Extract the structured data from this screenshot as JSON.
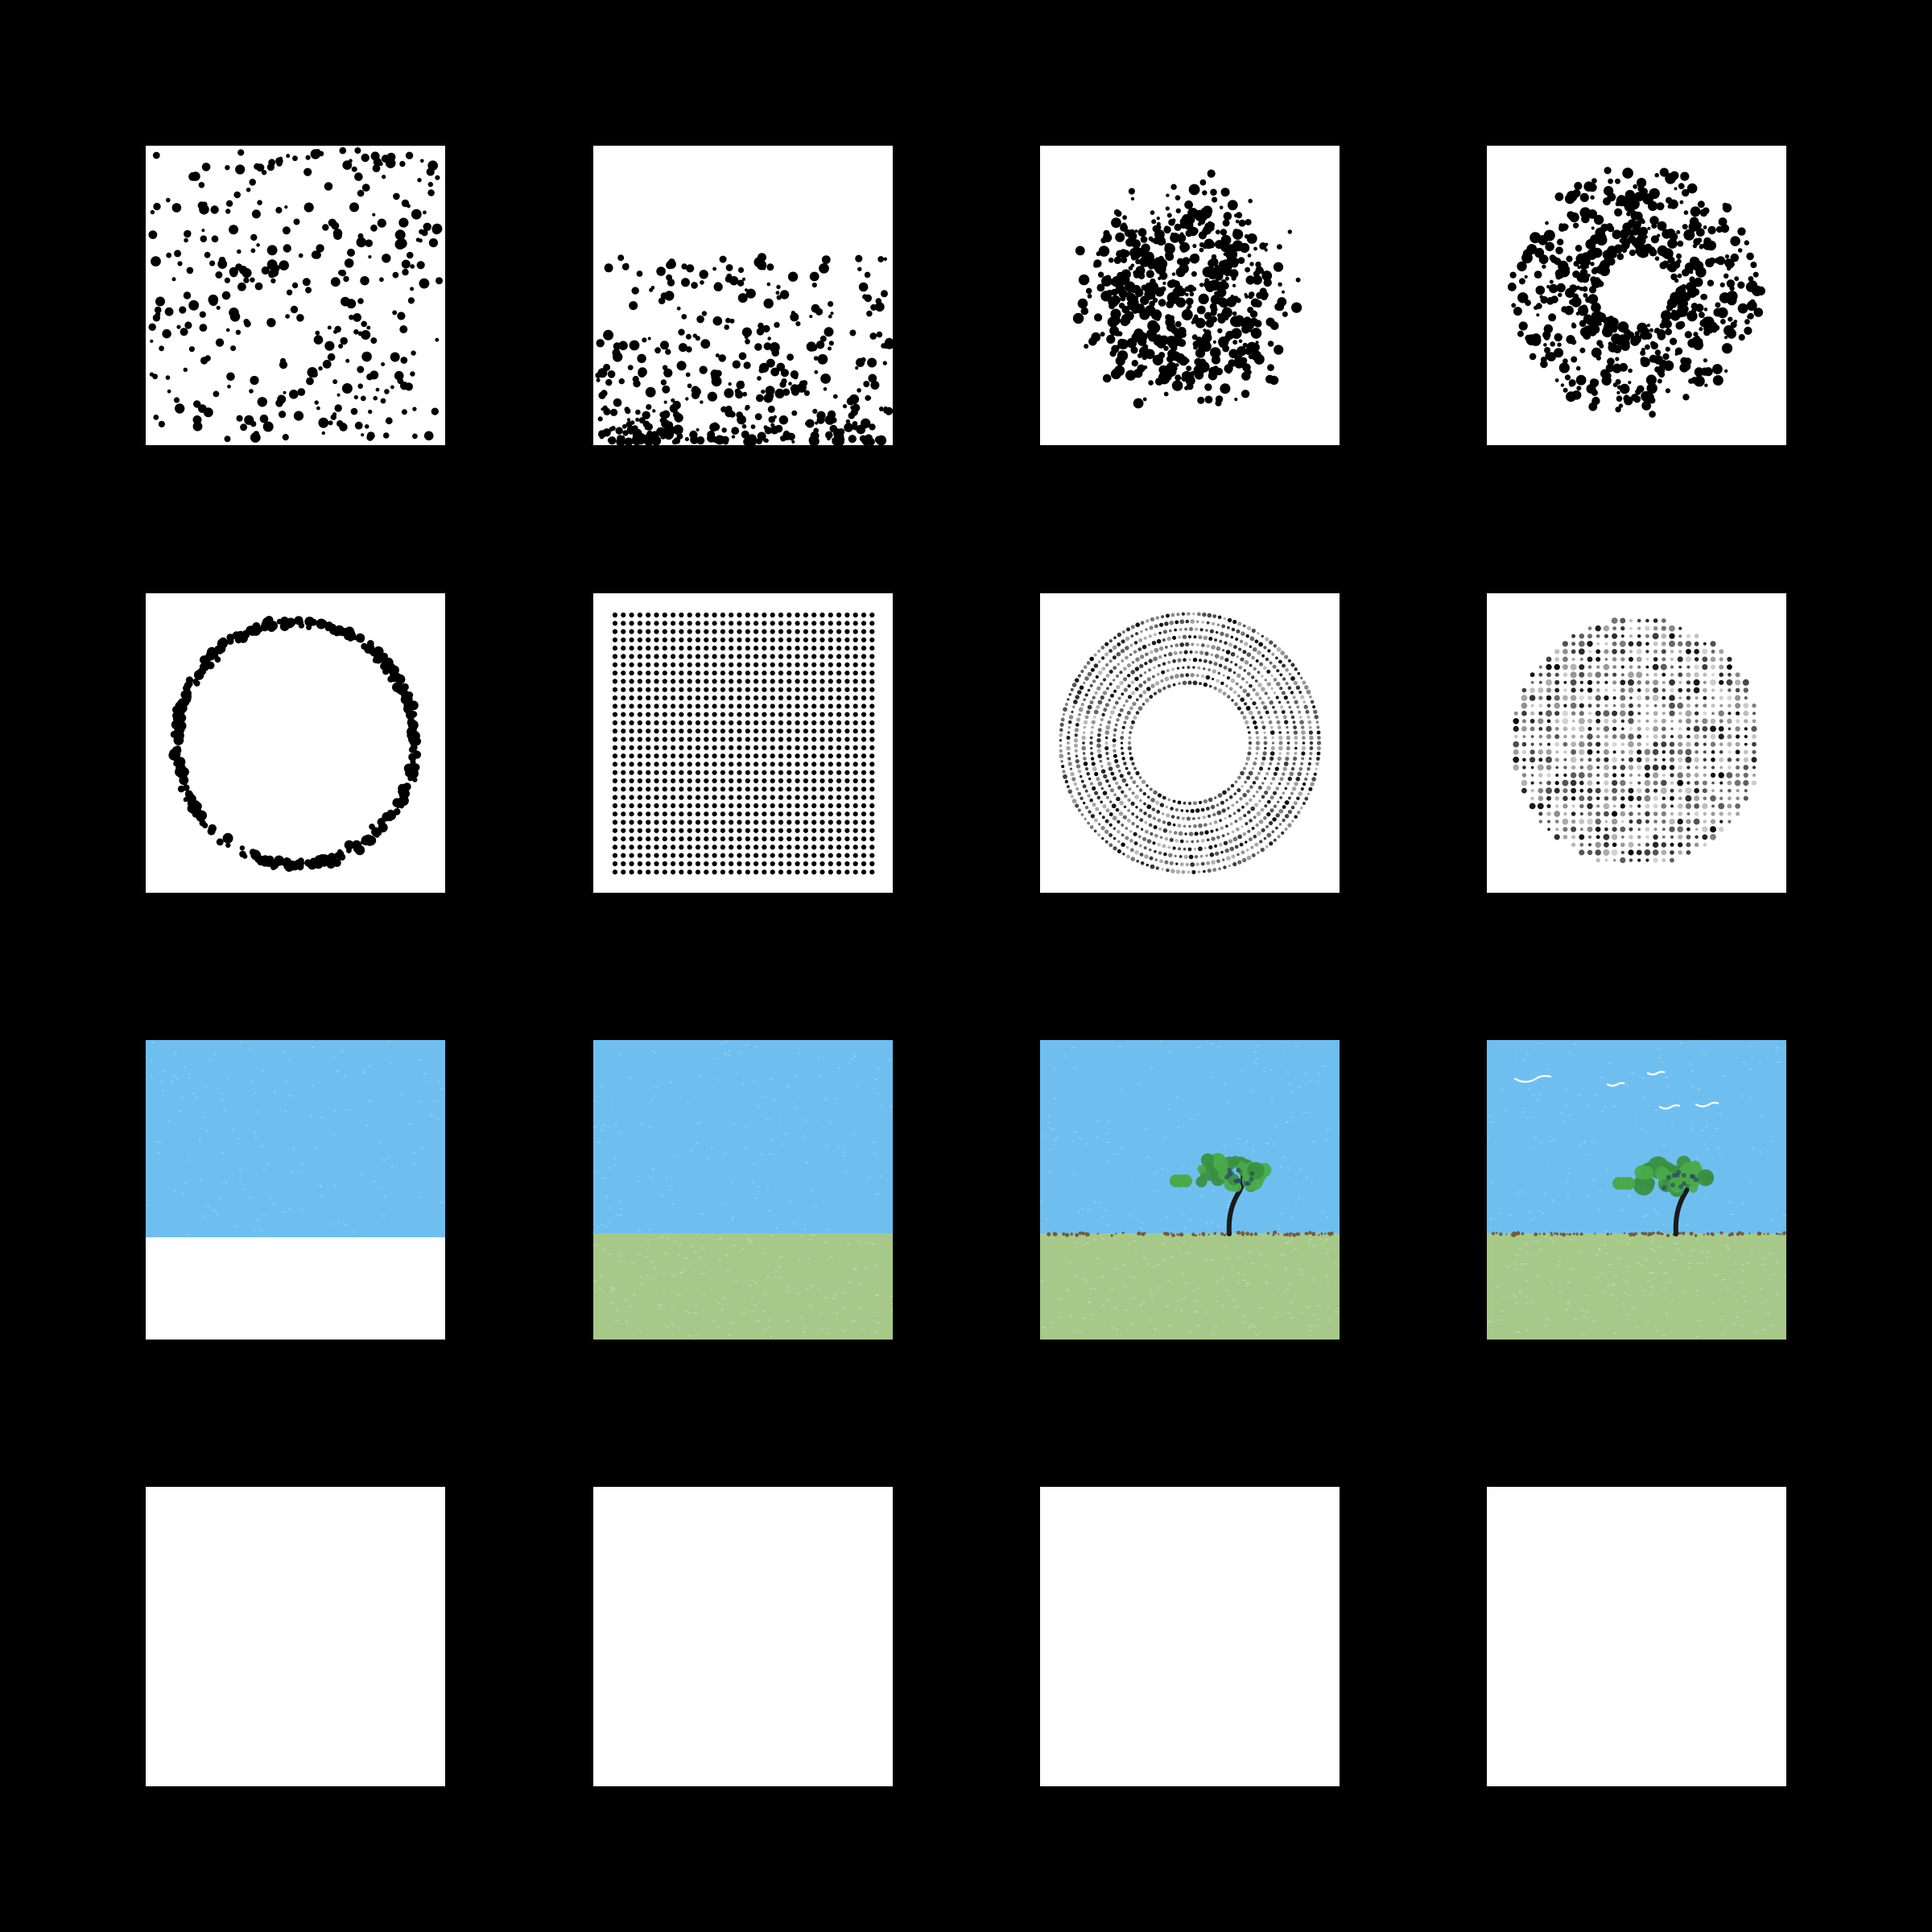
{
  "colors": {
    "background": "#000000",
    "canvas": "#ffffff",
    "dot": "#000000",
    "sky": "#6ebff0",
    "grass": "#a6c98a",
    "soil": "#7a5a3a",
    "trunk": "#1a1a1a",
    "leaf": "#4aaa4a",
    "leaf_dark": "#3a8f3f",
    "bird": "#ffffff"
  },
  "grid": {
    "rows": 4,
    "columns": 4,
    "tiles": [
      {
        "row": 0,
        "col": 0,
        "kind": "uniform-random-dots",
        "icon": "random-scatter"
      },
      {
        "row": 0,
        "col": 1,
        "kind": "bottom-weighted-dots",
        "icon": "gradient-scatter"
      },
      {
        "row": 0,
        "col": 2,
        "kind": "radial-cluster-dots",
        "icon": "disc-scatter"
      },
      {
        "row": 0,
        "col": 3,
        "kind": "ring-cluster-dots",
        "icon": "ring-scatter"
      },
      {
        "row": 1,
        "col": 0,
        "kind": "circle-outline-dots",
        "icon": "circle-of-dots"
      },
      {
        "row": 1,
        "col": 1,
        "kind": "regular-grid-dots",
        "icon": "dot-grid"
      },
      {
        "row": 1,
        "col": 2,
        "kind": "concentric-ring-dots",
        "icon": "concentric-rings"
      },
      {
        "row": 1,
        "col": 3,
        "kind": "grid-disc-dots",
        "icon": "dot-disc"
      },
      {
        "row": 2,
        "col": 0,
        "kind": "sky-only",
        "icon": "sky-scene"
      },
      {
        "row": 2,
        "col": 1,
        "kind": "sky-grass",
        "icon": "landscape-scene"
      },
      {
        "row": 2,
        "col": 2,
        "kind": "sky-grass-tree",
        "icon": "tree-scene"
      },
      {
        "row": 2,
        "col": 3,
        "kind": "sky-grass-tree-birds",
        "icon": "tree-birds-scene"
      },
      {
        "row": 3,
        "col": 0,
        "kind": "blank",
        "icon": "blank-canvas"
      },
      {
        "row": 3,
        "col": 1,
        "kind": "blank",
        "icon": "blank-canvas"
      },
      {
        "row": 3,
        "col": 2,
        "kind": "blank",
        "icon": "blank-canvas"
      },
      {
        "row": 3,
        "col": 3,
        "kind": "blank",
        "icon": "blank-canvas"
      }
    ]
  }
}
